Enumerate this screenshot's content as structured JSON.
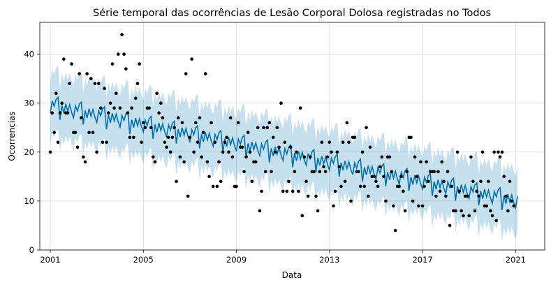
{
  "chart_data": {
    "type": "line",
    "title": "Série temporal das ocorrências de Lesão Corporal Dolosa registradas no Todos",
    "xlabel": "Data",
    "ylabel": "Ocorrencias",
    "xlim": [
      2000.55,
      2022.25
    ],
    "ylim": [
      0,
      46.5
    ],
    "x_ticks": [
      2001,
      2005,
      2009,
      2013,
      2017,
      2021
    ],
    "x_tick_labels": [
      "2001",
      "2005",
      "2009",
      "2013",
      "2017",
      "2021"
    ],
    "y_ticks": [
      0,
      10,
      20,
      30,
      40
    ],
    "y_tick_labels": [
      "0",
      "10",
      "20",
      "30",
      "40"
    ],
    "grid": true,
    "colors": {
      "forecast": "#0072B2",
      "band": "#0072B2",
      "observed": "#000000"
    },
    "series": [
      {
        "kind": "forecast",
        "trend_points": [
          [
            2001.0,
            29.5
          ],
          [
            2021.1,
            10.0
          ]
        ],
        "seasonal_monthly": [
          -1.5,
          1.0,
          0.0,
          1.5,
          2.0,
          -2.5,
          0.5,
          -1.0,
          1.0,
          -0.5,
          1.0,
          -0.5
        ],
        "band_halfwidth": 6.5
      },
      {
        "kind": "observed",
        "points": [
          [
            2001.0,
            20
          ],
          [
            2001.08,
            28
          ],
          [
            2001.17,
            24
          ],
          [
            2001.25,
            32
          ],
          [
            2001.33,
            22
          ],
          [
            2001.42,
            28
          ],
          [
            2001.5,
            30
          ],
          [
            2001.58,
            39
          ],
          [
            2001.67,
            28
          ],
          [
            2001.75,
            28
          ],
          [
            2001.83,
            34
          ],
          [
            2001.92,
            38
          ],
          [
            2002.0,
            24
          ],
          [
            2002.08,
            24
          ],
          [
            2002.17,
            21
          ],
          [
            2002.25,
            36
          ],
          [
            2002.33,
            27
          ],
          [
            2002.42,
            19
          ],
          [
            2002.5,
            18
          ],
          [
            2002.58,
            36
          ],
          [
            2002.67,
            24
          ],
          [
            2002.75,
            35
          ],
          [
            2002.83,
            24
          ],
          [
            2002.92,
            34
          ],
          [
            2003.0,
            20
          ],
          [
            2003.08,
            34
          ],
          [
            2003.17,
            29
          ],
          [
            2003.25,
            22
          ],
          [
            2003.33,
            33
          ],
          [
            2003.42,
            22
          ],
          [
            2003.5,
            28
          ],
          [
            2003.58,
            30
          ],
          [
            2003.67,
            38
          ],
          [
            2003.75,
            29
          ],
          [
            2003.83,
            32
          ],
          [
            2003.92,
            40
          ],
          [
            2004.0,
            29
          ],
          [
            2004.08,
            44
          ],
          [
            2004.17,
            40
          ],
          [
            2004.25,
            37
          ],
          [
            2004.33,
            28
          ],
          [
            2004.42,
            23
          ],
          [
            2004.5,
            29
          ],
          [
            2004.58,
            23
          ],
          [
            2004.67,
            31
          ],
          [
            2004.75,
            34
          ],
          [
            2004.83,
            38
          ],
          [
            2004.92,
            22
          ],
          [
            2005.0,
            26
          ],
          [
            2005.08,
            25
          ],
          [
            2005.17,
            29
          ],
          [
            2005.25,
            29
          ],
          [
            2005.33,
            25
          ],
          [
            2005.42,
            19
          ],
          [
            2005.5,
            18
          ],
          [
            2005.58,
            32
          ],
          [
            2005.67,
            28
          ],
          [
            2005.75,
            30
          ],
          [
            2005.83,
            27
          ],
          [
            2005.92,
            22
          ],
          [
            2006.0,
            21
          ],
          [
            2006.08,
            23
          ],
          [
            2006.17,
            20
          ],
          [
            2006.25,
            23
          ],
          [
            2006.33,
            25
          ],
          [
            2006.42,
            14
          ],
          [
            2006.5,
            27
          ],
          [
            2006.58,
            19
          ],
          [
            2006.67,
            26
          ],
          [
            2006.75,
            18
          ],
          [
            2006.83,
            36
          ],
          [
            2006.92,
            11
          ],
          [
            2007.0,
            23
          ],
          [
            2007.08,
            39
          ],
          [
            2007.17,
            20
          ],
          [
            2007.25,
            26
          ],
          [
            2007.33,
            22
          ],
          [
            2007.42,
            27
          ],
          [
            2007.5,
            19
          ],
          [
            2007.58,
            24
          ],
          [
            2007.67,
            36
          ],
          [
            2007.75,
            18
          ],
          [
            2007.83,
            15
          ],
          [
            2007.92,
            26
          ],
          [
            2008.0,
            13
          ],
          [
            2008.08,
            22
          ],
          [
            2008.17,
            13
          ],
          [
            2008.25,
            18
          ],
          [
            2008.33,
            14
          ],
          [
            2008.42,
            20
          ],
          [
            2008.5,
            22
          ],
          [
            2008.58,
            23
          ],
          [
            2008.67,
            20
          ],
          [
            2008.75,
            27
          ],
          [
            2008.83,
            19
          ],
          [
            2008.92,
            13
          ],
          [
            2009.0,
            13
          ],
          [
            2009.08,
            26
          ],
          [
            2009.17,
            21
          ],
          [
            2009.25,
            21
          ],
          [
            2009.33,
            16
          ],
          [
            2009.42,
            19
          ],
          [
            2009.5,
            24
          ],
          [
            2009.58,
            20
          ],
          [
            2009.67,
            14
          ],
          [
            2009.75,
            18
          ],
          [
            2009.83,
            18
          ],
          [
            2009.92,
            25
          ],
          [
            2010.0,
            8
          ],
          [
            2010.08,
            12
          ],
          [
            2010.17,
            25
          ],
          [
            2010.25,
            16
          ],
          [
            2010.33,
            25
          ],
          [
            2010.42,
            26
          ],
          [
            2010.5,
            16
          ],
          [
            2010.58,
            23
          ],
          [
            2010.67,
            20
          ],
          [
            2010.75,
            25
          ],
          [
            2010.83,
            21
          ],
          [
            2010.92,
            30
          ],
          [
            2011.0,
            12
          ],
          [
            2011.08,
            22
          ],
          [
            2011.17,
            12
          ],
          [
            2011.25,
            14
          ],
          [
            2011.33,
            21
          ],
          [
            2011.42,
            12
          ],
          [
            2011.5,
            16
          ],
          [
            2011.58,
            20
          ],
          [
            2011.67,
            12
          ],
          [
            2011.75,
            29
          ],
          [
            2011.83,
            7
          ],
          [
            2011.92,
            19
          ],
          [
            2012.0,
            14
          ],
          [
            2012.08,
            11
          ],
          [
            2012.17,
            19
          ],
          [
            2012.25,
            16
          ],
          [
            2012.33,
            16
          ],
          [
            2012.42,
            11
          ],
          [
            2012.5,
            8
          ],
          [
            2012.58,
            16
          ],
          [
            2012.67,
            22
          ],
          [
            2012.75,
            17
          ],
          [
            2012.83,
            16
          ],
          [
            2012.92,
            19
          ],
          [
            2013.0,
            22
          ],
          [
            2013.08,
            20
          ],
          [
            2013.17,
            9
          ],
          [
            2013.25,
            12
          ],
          [
            2013.33,
            20
          ],
          [
            2013.42,
            17
          ],
          [
            2013.5,
            13
          ],
          [
            2013.58,
            22
          ],
          [
            2013.67,
            14
          ],
          [
            2013.75,
            26
          ],
          [
            2013.83,
            22
          ],
          [
            2013.92,
            10
          ],
          [
            2014.0,
            23
          ],
          [
            2014.08,
            23
          ],
          [
            2014.17,
            16
          ],
          [
            2014.25,
            16
          ],
          [
            2014.33,
            13
          ],
          [
            2014.42,
            20
          ],
          [
            2014.5,
            13
          ],
          [
            2014.58,
            25
          ],
          [
            2014.67,
            11
          ],
          [
            2014.75,
            21
          ],
          [
            2014.83,
            15
          ],
          [
            2014.92,
            15
          ],
          [
            2015.0,
            14
          ],
          [
            2015.08,
            13
          ],
          [
            2015.17,
            17
          ],
          [
            2015.25,
            19
          ],
          [
            2015.33,
            15
          ],
          [
            2015.42,
            10
          ],
          [
            2015.5,
            19
          ],
          [
            2015.58,
            19
          ],
          [
            2015.67,
            16
          ],
          [
            2015.75,
            9
          ],
          [
            2015.83,
            4
          ],
          [
            2015.92,
            13
          ],
          [
            2016.0,
            13
          ],
          [
            2016.08,
            15
          ],
          [
            2016.17,
            12
          ],
          [
            2016.25,
            8
          ],
          [
            2016.33,
            16
          ],
          [
            2016.42,
            23
          ],
          [
            2016.5,
            23
          ],
          [
            2016.58,
            10
          ],
          [
            2016.67,
            19
          ],
          [
            2016.75,
            15
          ],
          [
            2016.83,
            9
          ],
          [
            2016.92,
            18
          ],
          [
            2017.0,
            9
          ],
          [
            2017.08,
            13
          ],
          [
            2017.17,
            18
          ],
          [
            2017.25,
            14
          ],
          [
            2017.33,
            16
          ],
          [
            2017.42,
            16
          ],
          [
            2017.5,
            16
          ],
          [
            2017.58,
            11
          ],
          [
            2017.67,
            16
          ],
          [
            2017.75,
            12
          ],
          [
            2017.83,
            18
          ],
          [
            2017.92,
            14
          ],
          [
            2018.0,
            11
          ],
          [
            2018.08,
            16
          ],
          [
            2018.17,
            5
          ],
          [
            2018.25,
            13
          ],
          [
            2018.33,
            8
          ],
          [
            2018.42,
            8
          ],
          [
            2018.5,
            20
          ],
          [
            2018.58,
            12
          ],
          [
            2018.67,
            8
          ],
          [
            2018.75,
            7
          ],
          [
            2018.83,
            11
          ],
          [
            2018.92,
            11
          ],
          [
            2019.0,
            7
          ],
          [
            2019.08,
            19
          ],
          [
            2019.17,
            14
          ],
          [
            2019.25,
            8
          ],
          [
            2019.33,
            12
          ],
          [
            2019.42,
            11
          ],
          [
            2019.5,
            14
          ],
          [
            2019.58,
            20
          ],
          [
            2019.67,
            9
          ],
          [
            2019.75,
            9
          ],
          [
            2019.83,
            14
          ],
          [
            2019.92,
            8
          ],
          [
            2020.0,
            7
          ],
          [
            2020.08,
            20
          ],
          [
            2020.17,
            6
          ],
          [
            2020.25,
            20
          ],
          [
            2020.33,
            19
          ],
          [
            2020.42,
            20
          ],
          [
            2020.5,
            15
          ],
          [
            2020.58,
            11
          ],
          [
            2020.67,
            8
          ],
          [
            2020.75,
            14
          ],
          [
            2020.83,
            10
          ],
          [
            2020.92,
            9
          ]
        ]
      }
    ]
  }
}
